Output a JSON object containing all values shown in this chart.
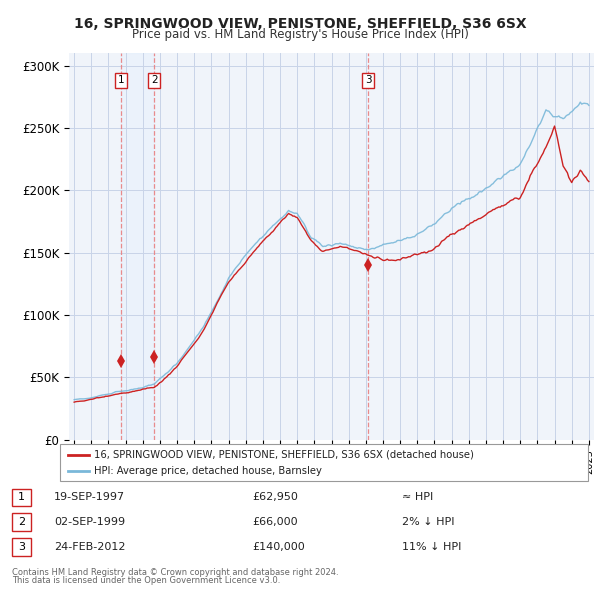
{
  "title": "16, SPRINGWOOD VIEW, PENISTONE, SHEFFIELD, S36 6SX",
  "subtitle": "Price paid vs. HM Land Registry's House Price Index (HPI)",
  "legend_label_red": "16, SPRINGWOOD VIEW, PENISTONE, SHEFFIELD, S36 6SX (detached house)",
  "legend_label_blue": "HPI: Average price, detached house, Barnsley",
  "footer_line1": "Contains HM Land Registry data © Crown copyright and database right 2024.",
  "footer_line2": "This data is licensed under the Open Government Licence v3.0.",
  "transactions": [
    {
      "num": 1,
      "date": "19-SEP-1997",
      "price": 62950,
      "hpi_rel": "≈ HPI",
      "year": 1997.72
    },
    {
      "num": 2,
      "date": "02-SEP-1999",
      "price": 66000,
      "hpi_rel": "2% ↓ HPI",
      "year": 1999.67
    },
    {
      "num": 3,
      "date": "24-FEB-2012",
      "price": 140000,
      "hpi_rel": "11% ↓ HPI",
      "year": 2012.15
    }
  ],
  "hpi_color": "#7ab8d9",
  "price_color": "#cc2222",
  "dashed_color": "#e88080",
  "shade_color": "#ddeeff",
  "ylim": [
    0,
    310000
  ],
  "yticks": [
    0,
    50000,
    100000,
    150000,
    200000,
    250000,
    300000
  ],
  "ytick_labels": [
    "£0",
    "£50K",
    "£100K",
    "£150K",
    "£200K",
    "£250K",
    "£300K"
  ],
  "xlim_start": 1994.7,
  "xlim_end": 2025.3,
  "background_color": "#f0f4fa",
  "plot_bg": "#f0f4fa",
  "grid_color": "#c8d4e8"
}
